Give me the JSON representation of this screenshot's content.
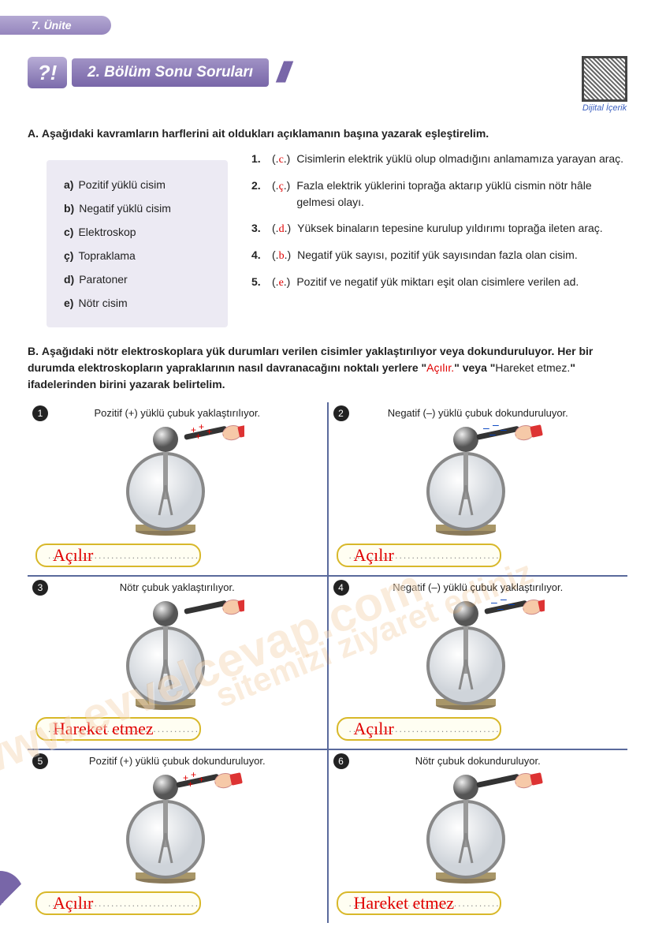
{
  "unit_tab": "7. Ünite",
  "qr_label": "Dijital İçerik",
  "section_icon": "?!",
  "section_title": "2. Bölüm Sonu Soruları",
  "qa": {
    "label": "A.",
    "text": "Aşağıdaki kavramların harflerini ait oldukları açıklamanın başına yazarak eşleştirelim.",
    "terms": [
      {
        "letter": "a)",
        "text": "Pozitif yüklü cisim"
      },
      {
        "letter": "b)",
        "text": "Negatif yüklü cisim"
      },
      {
        "letter": "c)",
        "text": "Elektroskop"
      },
      {
        "letter": "ç)",
        "text": "Topraklama"
      },
      {
        "letter": "d)",
        "text": "Paratoner"
      },
      {
        "letter": "e)",
        "text": "Nötr cisim"
      }
    ],
    "defs": [
      {
        "num": "1.",
        "ans": "c",
        "text": "Cisimlerin elektrik yüklü olup olmadığını anlamamıza yarayan araç."
      },
      {
        "num": "2.",
        "ans": "ç",
        "text": "Fazla elektrik yüklerini toprağa aktarıp yüklü cismin nötr hâle gelmesi olayı."
      },
      {
        "num": "3.",
        "ans": "d",
        "text": "Yüksek binaların tepesine kurulup yıldırımı toprağa ileten araç."
      },
      {
        "num": "4.",
        "ans": "b",
        "text": "Negatif yük sayısı, pozitif yük sayısından fazla olan cisim."
      },
      {
        "num": "5.",
        "ans": "e",
        "text": "Pozitif ve negatif yük miktarı eşit olan cisimlere verilen ad."
      }
    ]
  },
  "qb": {
    "label": "B.",
    "text_pre": "Aşağıdaki nötr elektroskoplara yük durumları verilen cisimler yaklaştırılıyor veya dokunduruluyor. Her bir durumda elektroskopların yapraklarının nasıl davranacağını noktalı yerlere \"",
    "word1": "Açılır.",
    "text_mid": "\" veya \"",
    "word2": "Hareket etmez.",
    "text_post": "\" ifadelerinden birini yazarak belirtelim.",
    "cells": [
      {
        "num": "1",
        "title": "Pozitif (+) yüklü çubuk yaklaştırılıyor.",
        "charge": "pos",
        "touch": false,
        "answer": "Açılır"
      },
      {
        "num": "2",
        "title": "Negatif (–) yüklü çubuk dokunduruluyor.",
        "charge": "neg",
        "touch": true,
        "answer": "Açılır"
      },
      {
        "num": "3",
        "title": "Nötr çubuk yaklaştırılıyor.",
        "charge": "none",
        "touch": false,
        "answer": "Hareket etmez"
      },
      {
        "num": "4",
        "title": "Negatif (–) yüklü çubuk yaklaştırılıyor.",
        "charge": "neg",
        "touch": false,
        "answer": "Açılır"
      },
      {
        "num": "5",
        "title": "Pozitif (+) yüklü çubuk dokunduruluyor.",
        "charge": "pos",
        "touch": true,
        "answer": "Açılır"
      },
      {
        "num": "6",
        "title": "Nötr çubuk dokunduruluyor.",
        "charge": "none",
        "touch": true,
        "answer": "Hareket etmez"
      }
    ]
  },
  "dots": "....................................",
  "watermarks": {
    "w1": "www.evvelcevap.com",
    "w2": "sitemizi ziyaret ediniz"
  },
  "colors": {
    "answer_red": "#e00000",
    "accent_purple": "#7866a8",
    "box_border": "#d8b82a",
    "grid_border": "#5a6a9c"
  }
}
